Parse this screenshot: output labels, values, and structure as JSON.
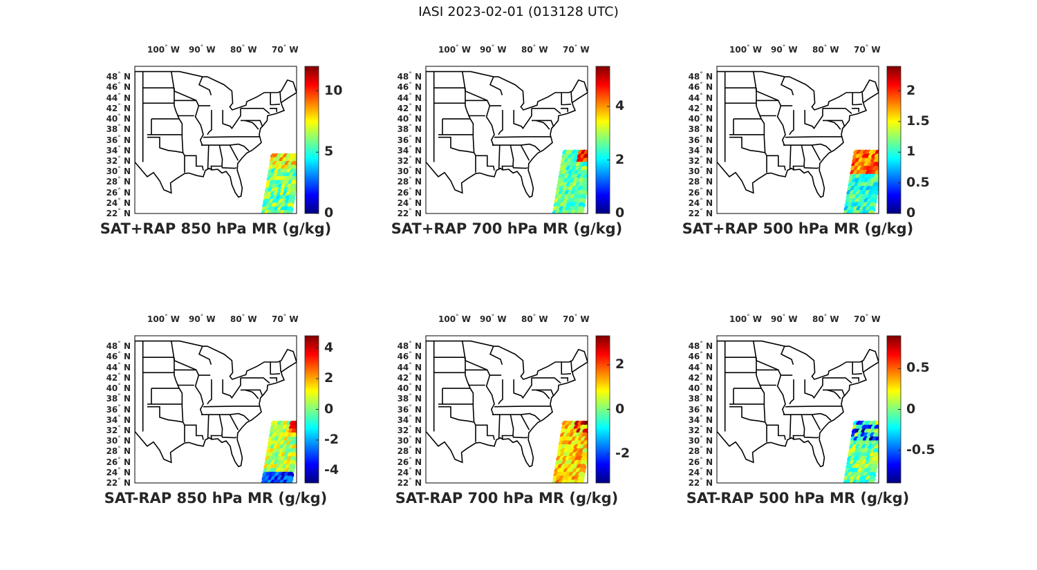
{
  "figure_title": "IASI 2023-02-01 (013128 UTC)",
  "lon_labels": [
    "100",
    "90",
    "80",
    "70"
  ],
  "lon_suffix": "W",
  "lat_labels": [
    "48",
    "46",
    "44",
    "42",
    "40",
    "38",
    "36",
    "34",
    "32",
    "30",
    "28",
    "26",
    "24",
    "22"
  ],
  "lat_suffix": "N",
  "degree_symbol": "°",
  "colormap": "jet",
  "panels": [
    {
      "title": "SAT+RAP 850 hPa MR (g/kg)",
      "cbar_ticks": [
        "0",
        "5",
        "10"
      ],
      "cbar_values": [
        0,
        5,
        10
      ],
      "clim": [
        0,
        12
      ]
    },
    {
      "title": "SAT+RAP 700 hPa MR (g/kg)",
      "cbar_ticks": [
        "0",
        "2",
        "4"
      ],
      "cbar_values": [
        0,
        2,
        4
      ],
      "clim": [
        0,
        5.5
      ]
    },
    {
      "title": "SAT+RAP 500 hPa MR (g/kg)",
      "cbar_ticks": [
        "0",
        "0.5",
        "1",
        "1.5",
        "2"
      ],
      "cbar_values": [
        0,
        0.5,
        1,
        1.5,
        2
      ],
      "clim": [
        0,
        2.4
      ]
    },
    {
      "title": "SAT-RAP 850 hPa MR (g/kg)",
      "cbar_ticks": [
        "-4",
        "-2",
        "0",
        "2",
        "4"
      ],
      "cbar_values": [
        -4,
        -2,
        0,
        2,
        4
      ],
      "clim": [
        -4.8,
        4.8
      ]
    },
    {
      "title": "SAT-RAP 700 hPa MR (g/kg)",
      "cbar_ticks": [
        "-2",
        "0",
        "2"
      ],
      "cbar_values": [
        -2,
        0,
        2
      ],
      "clim": [
        -3.3,
        3.3
      ]
    },
    {
      "title": "SAT-RAP 500 hPa MR (g/kg)",
      "cbar_ticks": [
        "-0.5",
        "0",
        "0.5"
      ],
      "cbar_values": [
        -0.5,
        0,
        0.5
      ],
      "clim": [
        -0.9,
        0.9
      ]
    }
  ]
}
